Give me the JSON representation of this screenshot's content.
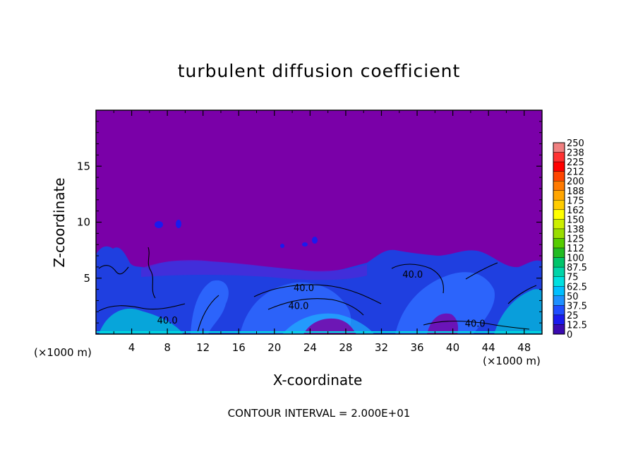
{
  "chart_data": {
    "type": "heatmap",
    "title": "turbulent diffusion coefficient",
    "xlabel": "X-coordinate",
    "ylabel": "Z-coordinate",
    "x_unit_label": "(×1000 m)",
    "xlim": [
      0,
      50
    ],
    "ylim": [
      0,
      20
    ],
    "x_ticks": [
      4,
      8,
      12,
      16,
      20,
      24,
      28,
      32,
      36,
      40,
      44,
      48
    ],
    "y_ticks": [
      5,
      10,
      15
    ],
    "contour_interval_text": "CONTOUR INTERVAL = 2.000E+01",
    "contour_labels": [
      {
        "x": 8,
        "z": 1.2,
        "text": "40.0"
      },
      {
        "x": 23.3,
        "z": 4.1,
        "text": "40.0"
      },
      {
        "x": 22.7,
        "z": 2.5,
        "text": "40.0"
      },
      {
        "x": 35.5,
        "z": 5.3,
        "text": "40.0"
      },
      {
        "x": 42.5,
        "z": 0.9,
        "text": "40.0"
      }
    ],
    "colorbar": {
      "levels": [
        "250",
        "238",
        "225",
        "212",
        "200",
        "188",
        "175",
        "162",
        "150",
        "138",
        "125",
        "112",
        "100",
        "87.5",
        "75",
        "62.5",
        "50",
        "37.5",
        "25",
        "12.5",
        "0"
      ],
      "colors": [
        "#f08080",
        "#ff3030",
        "#ff0000",
        "#ff4500",
        "#ff7a00",
        "#ffa500",
        "#ffcc00",
        "#ffff00",
        "#ccee00",
        "#99dd00",
        "#55cc00",
        "#22bb22",
        "#00c46a",
        "#00d4a8",
        "#00e0e0",
        "#00bfff",
        "#1e90ff",
        "#1f4dff",
        "#1a1aee",
        "#3a0ab0",
        "#7a00a8"
      ]
    },
    "background_color": "#7a00a8"
  }
}
